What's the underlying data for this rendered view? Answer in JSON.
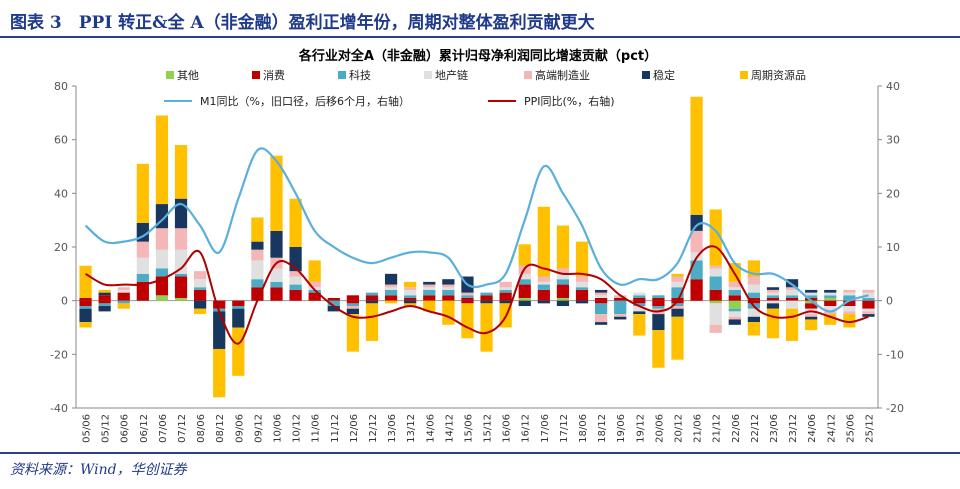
{
  "header": {
    "title": "图表 3　PPI 转正&全 A（非金融）盈利正增年份，周期对整体盈利贡献更大"
  },
  "footer": {
    "source": "资料来源：Wind，华创证券"
  },
  "colors": {
    "其他": "#92d050",
    "消费": "#c00000",
    "科技": "#4bacc6",
    "地产链": "#e0e0e0",
    "高端制造业": "#f4b6b6",
    "稳定": "#17375e",
    "周期资源品": "#ffc000",
    "M1": "#5aafde",
    "PPI": "#b00000",
    "accent": "#1f3a8a"
  },
  "chart_data": {
    "type": "bar",
    "title": "各行业对全A（非金融）累计归母净利润同比增速贡献（pct）",
    "y_left": {
      "min": -40,
      "max": 80,
      "ticks": [
        -40,
        -20,
        0,
        20,
        40,
        60,
        80
      ]
    },
    "y_right": {
      "min": -20,
      "max": 40,
      "ticks": [
        -20,
        -10,
        0,
        10,
        20,
        30,
        40
      ]
    },
    "categories": [
      "05/06",
      "05/12",
      "06/06",
      "06/12",
      "07/06",
      "07/12",
      "08/06",
      "08/12",
      "09/06",
      "09/12",
      "10/06",
      "10/12",
      "11/06",
      "11/12",
      "12/06",
      "12/12",
      "13/06",
      "13/12",
      "14/06",
      "14/12",
      "15/06",
      "15/12",
      "16/06",
      "16/12",
      "17/06",
      "17/12",
      "18/06",
      "18/12",
      "19/06",
      "19/12",
      "20/06",
      "20/12",
      "21/06",
      "21/12",
      "22/06",
      "22/12",
      "23/06",
      "23/12",
      "24/06",
      "24/12",
      "25/06",
      "25/12"
    ],
    "series": [
      {
        "name": "其他",
        "positive": [
          0,
          0,
          0,
          0,
          2,
          1,
          0,
          0,
          0,
          0,
          0,
          0,
          0,
          0,
          0,
          0,
          0,
          0,
          0,
          0,
          0,
          0,
          0,
          1,
          0,
          1,
          0,
          0,
          0,
          0,
          0,
          0,
          0,
          0,
          0,
          0,
          0,
          0,
          0,
          1,
          0,
          0
        ],
        "negative": [
          0,
          0,
          0,
          0,
          0,
          0,
          0,
          0,
          0,
          0,
          0,
          0,
          0,
          0,
          0,
          0,
          0,
          0,
          0,
          0,
          0,
          0,
          0,
          0,
          0,
          0,
          0,
          0,
          0,
          0,
          0,
          0,
          0,
          -1,
          -3,
          0,
          0,
          0,
          -1,
          0,
          0,
          0
        ]
      },
      {
        "name": "消费",
        "positive": [
          1,
          2,
          3,
          7,
          7,
          8,
          4,
          0,
          0,
          5,
          5,
          4,
          3,
          1,
          2,
          2,
          2,
          1,
          2,
          2,
          1,
          2,
          3,
          5,
          4,
          5,
          4,
          1,
          1,
          1,
          1,
          1,
          8,
          4,
          2,
          1,
          1,
          1,
          1,
          0,
          0,
          0
        ],
        "negative": [
          -2,
          -1,
          0,
          0,
          0,
          0,
          0,
          -3,
          -2,
          0,
          0,
          0,
          0,
          0,
          -1,
          0,
          0,
          0,
          0,
          0,
          -1,
          0,
          0,
          0,
          0,
          0,
          0,
          -1,
          0,
          -1,
          -2,
          -1,
          0,
          0,
          0,
          -1,
          0,
          0,
          -2,
          -2,
          -2,
          -3
        ]
      },
      {
        "name": "科技",
        "positive": [
          0,
          0,
          0,
          3,
          3,
          1,
          1,
          0,
          0,
          3,
          2,
          2,
          1,
          0,
          0,
          1,
          2,
          1,
          2,
          2,
          1,
          1,
          1,
          2,
          2,
          2,
          1,
          0,
          0,
          1,
          1,
          4,
          7,
          5,
          2,
          2,
          1,
          1,
          1,
          1,
          2,
          1
        ],
        "negative": [
          -1,
          -1,
          -1,
          0,
          0,
          0,
          0,
          -1,
          -1,
          0,
          0,
          0,
          0,
          -2,
          -1,
          0,
          0,
          0,
          0,
          0,
          0,
          0,
          0,
          0,
          0,
          0,
          0,
          -4,
          -5,
          -1,
          -1,
          -1,
          0,
          0,
          -1,
          -2,
          0,
          0,
          0,
          0,
          0,
          0
        ]
      },
      {
        "name": "地产链",
        "positive": [
          0,
          0,
          1,
          6,
          7,
          9,
          3,
          0,
          0,
          7,
          5,
          3,
          1,
          0,
          0,
          0,
          1,
          2,
          1,
          1,
          0,
          0,
          1,
          2,
          1,
          2,
          2,
          1,
          0,
          1,
          0,
          2,
          3,
          3,
          1,
          3,
          1,
          2,
          1,
          1,
          1,
          2
        ],
        "negative": [
          0,
          0,
          0,
          0,
          0,
          0,
          0,
          0,
          0,
          0,
          0,
          0,
          0,
          0,
          0,
          0,
          0,
          0,
          0,
          0,
          0,
          0,
          0,
          0,
          0,
          0,
          0,
          0,
          0,
          -2,
          0,
          0,
          0,
          -8,
          -2,
          -3,
          -1,
          -3,
          -2,
          -2,
          -2,
          -1
        ]
      },
      {
        "name": "高端制造业",
        "positive": [
          0,
          0,
          1,
          6,
          8,
          8,
          3,
          0,
          0,
          4,
          4,
          2,
          2,
          0,
          0,
          0,
          1,
          1,
          1,
          1,
          1,
          0,
          2,
          3,
          2,
          2,
          2,
          1,
          1,
          0,
          0,
          2,
          8,
          1,
          2,
          3,
          1,
          1,
          0,
          0,
          1,
          1
        ],
        "negative": [
          0,
          0,
          0,
          0,
          0,
          0,
          0,
          0,
          0,
          0,
          0,
          0,
          0,
          0,
          -1,
          0,
          0,
          0,
          0,
          0,
          0,
          0,
          0,
          0,
          0,
          0,
          0,
          -3,
          -1,
          0,
          -2,
          -1,
          0,
          -3,
          -1,
          0,
          0,
          0,
          -1,
          -1,
          -1,
          -1
        ]
      },
      {
        "name": "稳定",
        "positive": [
          0,
          1,
          0,
          7,
          9,
          11,
          0,
          0,
          0,
          3,
          10,
          9,
          0,
          0,
          0,
          0,
          4,
          0,
          1,
          2,
          6,
          0,
          0,
          0,
          0,
          0,
          0,
          1,
          0,
          0,
          0,
          0,
          6,
          0,
          0,
          0,
          1,
          3,
          1,
          1,
          0,
          0
        ],
        "negative": [
          -5,
          -2,
          0,
          0,
          0,
          0,
          -3,
          -14,
          -7,
          0,
          0,
          0,
          0,
          -2,
          -2,
          -1,
          0,
          -1,
          0,
          0,
          0,
          -1,
          -1,
          -2,
          -1,
          -2,
          -1,
          -1,
          -1,
          -1,
          -6,
          -3,
          0,
          0,
          -2,
          -2,
          -2,
          0,
          -1,
          0,
          0,
          -1
        ]
      },
      {
        "name": "周期资源品",
        "positive": [
          12,
          1,
          0,
          22,
          33,
          20,
          0,
          0,
          0,
          9,
          28,
          18,
          8,
          0,
          0,
          0,
          0,
          2,
          0,
          0,
          0,
          0,
          0,
          8,
          26,
          16,
          13,
          0,
          0,
          0,
          0,
          1,
          44,
          21,
          7,
          6,
          0,
          0,
          0,
          0,
          0,
          0
        ],
        "negative": [
          -2,
          0,
          -2,
          0,
          0,
          0,
          -2,
          -18,
          -18,
          0,
          0,
          0,
          0,
          0,
          -14,
          -14,
          -1,
          -1,
          -4,
          -9,
          -13,
          -18,
          -9,
          0,
          0,
          0,
          0,
          0,
          0,
          -8,
          -14,
          -16,
          0,
          0,
          0,
          -5,
          -11,
          -12,
          -4,
          -4,
          -5,
          0
        ]
      }
    ],
    "lines": [
      {
        "name": "M1同比（%，旧口径，后移6个月，右轴）",
        "axis": "right",
        "values": [
          14,
          11,
          11,
          12,
          15,
          18,
          14,
          9,
          19,
          28,
          26,
          20,
          13,
          10,
          8,
          7,
          8,
          9,
          9,
          8,
          3,
          3,
          5,
          15,
          25,
          20,
          14,
          6,
          3,
          4,
          4,
          7,
          14,
          13,
          7,
          5,
          5,
          3,
          0,
          -2,
          0,
          1
        ]
      },
      {
        "name": "PPI同比(%，右轴)",
        "axis": "right",
        "values": [
          5,
          3,
          3,
          3,
          4,
          6,
          9,
          -2,
          -8,
          0,
          7,
          6,
          2,
          -1,
          -3,
          -3,
          -2,
          -1,
          -2,
          -3,
          -5,
          -6,
          -3,
          6,
          6,
          5,
          5,
          4,
          1,
          -1,
          -2,
          0,
          8,
          10,
          5,
          -1,
          -3,
          -3,
          -2,
          -3,
          -4,
          -3
        ]
      }
    ],
    "legend": {
      "row1": [
        "其他",
        "消费",
        "科技",
        "地产链",
        "高端制造业",
        "稳定",
        "周期资源品"
      ],
      "row2": [
        "M1同比（%，旧口径，后移6个月，右轴）",
        "PPI同比(%，右轴)"
      ],
      "placement": "top"
    },
    "grid": false
  }
}
